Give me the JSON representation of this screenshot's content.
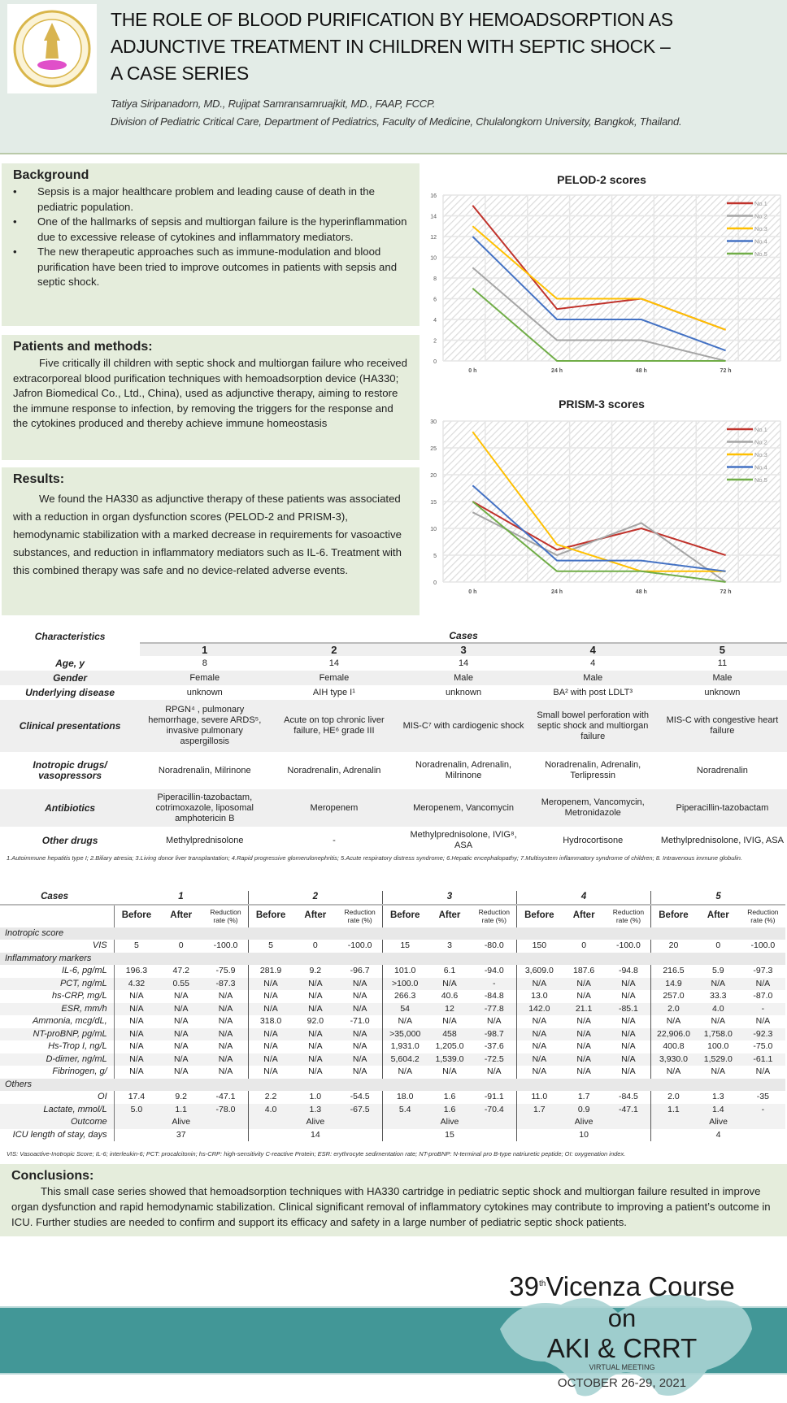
{
  "header": {
    "title_lines": [
      "THE ROLE OF BLOOD PURIFICATION BY HEMOADSORPTION AS",
      "ADJUNCTIVE TREATMENT IN CHILDREN WITH SEPTIC SHOCK –",
      "A CASE SERIES"
    ],
    "authors": "Tatiya Siripanadorn, MD., Rujipat Samransamruajkit, MD., FAAP, FCCP.",
    "affiliation": "Division of Pediatric Critical Care, Department of Pediatrics, Faculty of Medicine, Chulalongkorn University, Bangkok, Thailand.",
    "logo_text": "Faculty of Medicine Chulalongkorn University"
  },
  "background": {
    "heading": "Background",
    "bullets": [
      "Sepsis is a major healthcare problem and leading cause of death in the pediatric population.",
      "One of the hallmarks of sepsis and multiorgan failure is the hyperinflammation due to excessive release of cytokines and inflammatory mediators.",
      "The new therapeutic approaches such as immune-modulation and blood purification have been tried to improve outcomes in patients with sepsis and septic shock."
    ]
  },
  "methods": {
    "heading": "Patients and methods:",
    "text": "Five critically ill children with septic shock and multiorgan failure who received extracorporeal blood purification techniques with hemoadsorption device (HA330; Jafron Biomedical Co., Ltd., China), used as adjunctive therapy, aiming to restore the immune response to infection, by removing the triggers for the response and the cytokines produced and thereby achieve immune homeostasis"
  },
  "results": {
    "heading": "Results:",
    "text": "We found the HA330 as adjunctive therapy of these patients was associated with a reduction in organ dysfunction scores (PELOD-2 and PRISM-3), hemodynamic stabilization with a marked decrease in requirements for vasoactive substances, and reduction in inflammatory mediators such as IL-6. Treatment with this combined therapy was safe and no device-related adverse events."
  },
  "chart_data": [
    {
      "type": "line",
      "title": "PELOD-2 scores",
      "categories": [
        "0 h",
        "24 h",
        "48 h",
        "72 h"
      ],
      "ylim": [
        0,
        16
      ],
      "yticks": [
        0,
        2,
        4,
        6,
        8,
        10,
        12,
        14,
        16
      ],
      "grid": true,
      "legend": "top-right",
      "series": [
        {
          "name": "No.1",
          "color": "#c0322b",
          "values": [
            15,
            5,
            6,
            3
          ]
        },
        {
          "name": "No.2",
          "color": "#a5a5a5",
          "values": [
            9,
            2,
            2,
            0
          ]
        },
        {
          "name": "No.3",
          "color": "#ffc000",
          "values": [
            13,
            6,
            6,
            3
          ]
        },
        {
          "name": "No.4",
          "color": "#4472c4",
          "values": [
            12,
            4,
            4,
            1
          ]
        },
        {
          "name": "No.5",
          "color": "#70ad47",
          "values": [
            7,
            0,
            0,
            0
          ]
        }
      ]
    },
    {
      "type": "line",
      "title": "PRISM-3 scores",
      "categories": [
        "0 h",
        "24 h",
        "48 h",
        "72 h"
      ],
      "ylim": [
        0,
        30
      ],
      "yticks": [
        0,
        5,
        10,
        15,
        20,
        25,
        30
      ],
      "grid": true,
      "legend": "top-right",
      "series": [
        {
          "name": "No.1",
          "color": "#c0322b",
          "values": [
            15,
            6,
            10,
            5
          ]
        },
        {
          "name": "No.2",
          "color": "#a5a5a5",
          "values": [
            13,
            5,
            11,
            0
          ]
        },
        {
          "name": "No.3",
          "color": "#ffc000",
          "values": [
            28,
            7,
            2,
            2
          ]
        },
        {
          "name": "No.4",
          "color": "#4472c4",
          "values": [
            18,
            4,
            4,
            2
          ]
        },
        {
          "name": "No.5",
          "color": "#70ad47",
          "values": [
            15,
            2,
            2,
            0
          ]
        }
      ]
    }
  ],
  "characteristics": {
    "label": "Characteristics",
    "cases_label": "Cases",
    "cases": [
      "1",
      "2",
      "3",
      "4",
      "5"
    ],
    "rows": [
      {
        "label": "Age, y",
        "values": [
          "8",
          "14",
          "14",
          "4",
          "11"
        ]
      },
      {
        "label": "Gender",
        "values": [
          "Female",
          "Female",
          "Male",
          "Male",
          "Male"
        ]
      },
      {
        "label": "Underlying disease",
        "values": [
          "unknown",
          "AIH type I¹",
          "unknown",
          "BA² with post LDLT³",
          "unknown"
        ]
      },
      {
        "label": "Clinical presentations",
        "values": [
          "RPGN⁴ , pulmonary hemorrhage, severe ARDS⁵, invasive pulmonary aspergillosis",
          "Acute on top chronic liver failure, HE⁶ grade III",
          "MIS-C⁷ with cardiogenic shock",
          "Small bowel perforation with septic shock and multiorgan failure",
          "MIS-C with congestive heart failure"
        ]
      },
      {
        "label": "Inotropic drugs/ vasopressors",
        "values": [
          "Noradrenalin, Milrinone",
          "Noradrenalin, Adrenalin",
          "Noradrenalin, Adrenalin, Milrinone",
          "Noradrenalin, Adrenalin, Terlipressin",
          "Noradrenalin"
        ]
      },
      {
        "label": "Antibiotics",
        "values": [
          "Piperacillin-tazobactam, cotrimoxazole, liposomal amphotericin B",
          "Meropenem",
          "Meropenem, Vancomycin",
          "Meropenem, Vancomycin, Metronidazole",
          "Piperacillin-tazobactam"
        ]
      },
      {
        "label": "Other drugs",
        "values": [
          "Methylprednisolone",
          "-",
          "Methylprednisolone, IVIG⁸, ASA",
          "Hydrocortisone",
          "Methylprednisolone, IVIG, ASA"
        ]
      }
    ],
    "footnote": "1.Autoimmune hepatitis type I; 2.Biliary atresia; 3.Living donor liver transplantation; 4.Rapid progressive glomerulonephritis; 5.Acute respiratory distress syndrome; 6.Hepatic encephalopathy; 7.Multisystem inflammatory syndrome of children; 8. Intravenous immune globulin."
  },
  "outcomes": {
    "cases_label": "Cases",
    "cases": [
      "1",
      "2",
      "3",
      "4",
      "5"
    ],
    "subheaders": [
      "Before",
      "After",
      "Reduction rate (%)"
    ],
    "sections": [
      {
        "title": "Inotropic score",
        "rows": [
          {
            "label": "VIS",
            "values": [
              "5",
              "0",
              "-100.0",
              "5",
              "0",
              "-100.0",
              "15",
              "3",
              "-80.0",
              "150",
              "0",
              "-100.0",
              "20",
              "0",
              "-100.0"
            ]
          }
        ]
      },
      {
        "title": "Inflammatory markers",
        "rows": [
          {
            "label": "IL-6, pg/mL",
            "values": [
              "196.3",
              "47.2",
              "-75.9",
              "281.9",
              "9.2",
              "-96.7",
              "101.0",
              "6.1",
              "-94.0",
              "3,609.0",
              "187.6",
              "-94.8",
              "216.5",
              "5.9",
              "-97.3"
            ]
          },
          {
            "label": "PCT, ng/mL",
            "values": [
              "4.32",
              "0.55",
              "-87.3",
              "N/A",
              "N/A",
              "N/A",
              ">100.0",
              "N/A",
              "-",
              "N/A",
              "N/A",
              "N/A",
              "14.9",
              "N/A",
              "N/A"
            ]
          },
          {
            "label": "hs-CRP, mg/L",
            "values": [
              "N/A",
              "N/A",
              "N/A",
              "N/A",
              "N/A",
              "N/A",
              "266.3",
              "40.6",
              "-84.8",
              "13.0",
              "N/A",
              "N/A",
              "257.0",
              "33.3",
              "-87.0"
            ]
          },
          {
            "label": "ESR, mm/h",
            "values": [
              "N/A",
              "N/A",
              "N/A",
              "N/A",
              "N/A",
              "N/A",
              "54",
              "12",
              "-77.8",
              "142.0",
              "21.1",
              "-85.1",
              "2.0",
              "4.0",
              "-"
            ]
          },
          {
            "label": "Ammonia, mcg/dL,",
            "values": [
              "N/A",
              "N/A",
              "N/A",
              "318.0",
              "92.0",
              "-71.0",
              "N/A",
              "N/A",
              "N/A",
              "N/A",
              "N/A",
              "N/A",
              "N/A",
              "N/A",
              "N/A"
            ]
          },
          {
            "label": "NT-proBNP, pg/mL",
            "values": [
              "N/A",
              "N/A",
              "N/A",
              "N/A",
              "N/A",
              "N/A",
              ">35,000",
              "458",
              "-98.7",
              "N/A",
              "N/A",
              "N/A",
              "22,906.0",
              "1,758.0",
              "-92.3"
            ]
          },
          {
            "label": "Hs-Trop I, ng/L",
            "values": [
              "N/A",
              "N/A",
              "N/A",
              "N/A",
              "N/A",
              "N/A",
              "1,931.0",
              "1,205.0",
              "-37.6",
              "N/A",
              "N/A",
              "N/A",
              "400.8",
              "100.0",
              "-75.0"
            ]
          },
          {
            "label": "D-dimer, ng/mL",
            "values": [
              "N/A",
              "N/A",
              "N/A",
              "N/A",
              "N/A",
              "N/A",
              "5,604.2",
              "1,539.0",
              "-72.5",
              "N/A",
              "N/A",
              "N/A",
              "3,930.0",
              "1,529.0",
              "-61.1"
            ]
          },
          {
            "label": "Fibrinogen, g/",
            "values": [
              "N/A",
              "N/A",
              "N/A",
              "N/A",
              "N/A",
              "N/A",
              "N/A",
              "N/A",
              "N/A",
              "N/A",
              "N/A",
              "N/A",
              "N/A",
              "N/A",
              "N/A"
            ]
          }
        ]
      },
      {
        "title": "Others",
        "rows": [
          {
            "label": "OI",
            "values": [
              "17.4",
              "9.2",
              "-47.1",
              "2.2",
              "1.0",
              "-54.5",
              "18.0",
              "1.6",
              "-91.1",
              "11.0",
              "1.7",
              "-84.5",
              "2.0",
              "1.3",
              "-35"
            ]
          },
          {
            "label": "Lactate, mmol/L",
            "values": [
              "5.0",
              "1.1",
              "-78.0",
              "4.0",
              "1.3",
              "-67.5",
              "5.4",
              "1.6",
              "-70.4",
              "1.7",
              "0.9",
              "-47.1",
              "1.1",
              "1.4",
              "-"
            ]
          }
        ]
      }
    ],
    "outcome": {
      "label": "Outcome",
      "values": [
        "Alive",
        "Alive",
        "Alive",
        "Alive",
        "Alive"
      ]
    },
    "icu_stay": {
      "label": "ICU length of stay, days",
      "values": [
        "37",
        "14",
        "15",
        "10",
        "4"
      ]
    },
    "footnote": "VIS: Vasoactive-Inotropic Score; IL-6; interleukin-6; PCT: procalcitonin; hs-CRP: high-sensitivity C-reactive Protein; ESR: erythrocyte sedimentation rate; NT-proBNP: N-terminal pro B-type natriuretic peptide; OI: oxygenation index."
  },
  "conclusions": {
    "heading": "Conclusions:",
    "text": "This small case series showed that hemoadsorption techniques with HA330 cartridge in pediatric septic shock and multiorgan failure resulted in improve organ dysfunction and rapid hemodynamic stabilization. Clinical significant removal of inflammatory cytokines may contribute to improving a patient’s outcome in ICU. Further studies are needed to confirm and support its efficacy and safety in a large number of pediatric septic shock patients."
  },
  "event": {
    "number": "39",
    "sup": "th",
    "line1": "Vicenza Course",
    "line2": "on",
    "line3": "AKI & CRRT",
    "subtitle": "VIRTUAL MEETING",
    "dates": "OCTOBER 26-29, 2021",
    "band_color": "#429797"
  }
}
